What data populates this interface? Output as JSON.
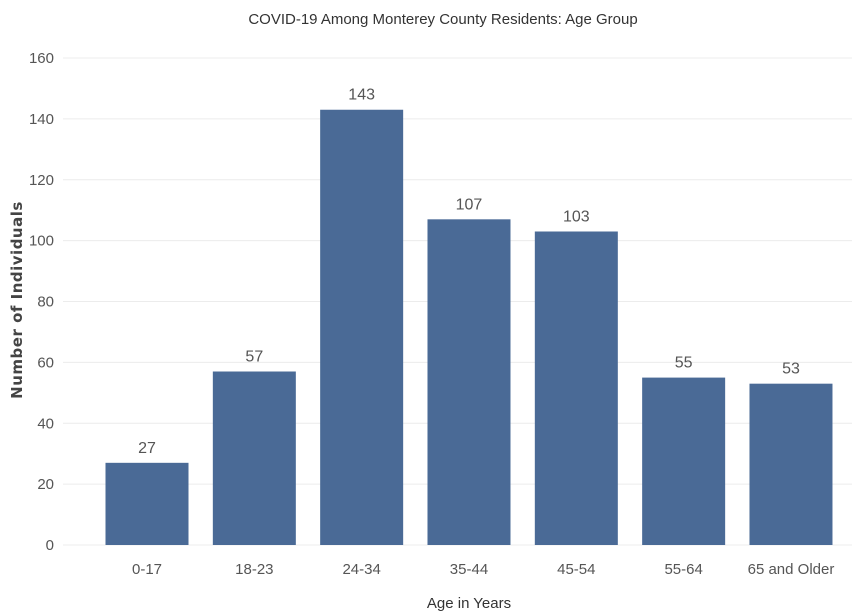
{
  "chart_data": {
    "type": "bar",
    "title": "COVID-19 Among Monterey County Residents: Age Group",
    "xlabel": "Age in Years",
    "ylabel": "Number of Individuals",
    "categories": [
      "0-17",
      "18-23",
      "24-34",
      "35-44",
      "45-54",
      "55-64",
      "65 and Older"
    ],
    "values": [
      27,
      57,
      143,
      107,
      103,
      55,
      53
    ],
    "data_labels": [
      "27",
      "57",
      "143",
      "107",
      "103",
      "55",
      "53"
    ],
    "ylim": [
      0,
      160
    ],
    "yticks": [
      "0",
      "20",
      "40",
      "60",
      "80",
      "100",
      "120",
      "140",
      "160"
    ],
    "grid": true,
    "legend": "none",
    "bar_color": "#4a6a96"
  }
}
